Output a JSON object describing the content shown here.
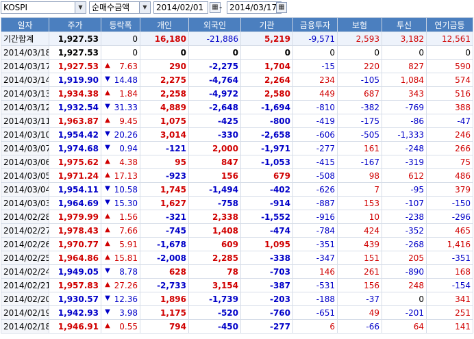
{
  "toolbar": {
    "market": "KOSPI",
    "metric": "순매수금액",
    "start_date": "2014/02/01",
    "separator": "-",
    "end_date": "2014/03/17"
  },
  "columns": [
    "일자",
    "주가",
    "등락폭",
    "개인",
    "외국인",
    "기관",
    "금융투자",
    "보험",
    "투신",
    "연기금등"
  ],
  "summary": {
    "label": "기간합계",
    "price": "1,927.53",
    "change": "0",
    "indiv": "16,180",
    "foreign": "-21,886",
    "inst": "5,219",
    "fin": "-9,571",
    "ins": "2,593",
    "trust": "3,182",
    "pension": "12,561"
  },
  "rows": [
    {
      "date": "2014/03/18",
      "price": "1,927.53",
      "dir": "none",
      "change": "0",
      "indiv": "0",
      "foreign": "0",
      "inst": "0",
      "fin": "0",
      "ins": "0",
      "trust": "0",
      "pension": "0"
    },
    {
      "date": "2014/03/17",
      "price": "1,927.53",
      "dir": "up",
      "change": "7.63",
      "indiv": "290",
      "foreign": "-2,275",
      "inst": "1,704",
      "fin": "-15",
      "ins": "220",
      "trust": "827",
      "pension": "590"
    },
    {
      "date": "2014/03/14",
      "price": "1,919.90",
      "dir": "down",
      "change": "14.48",
      "indiv": "2,275",
      "foreign": "-4,764",
      "inst": "2,264",
      "fin": "234",
      "ins": "-105",
      "trust": "1,084",
      "pension": "574"
    },
    {
      "date": "2014/03/13",
      "price": "1,934.38",
      "dir": "up",
      "change": "1.84",
      "indiv": "2,258",
      "foreign": "-4,972",
      "inst": "2,580",
      "fin": "449",
      "ins": "687",
      "trust": "343",
      "pension": "516"
    },
    {
      "date": "2014/03/12",
      "price": "1,932.54",
      "dir": "down",
      "change": "31.33",
      "indiv": "4,889",
      "foreign": "-2,648",
      "inst": "-1,694",
      "fin": "-810",
      "ins": "-382",
      "trust": "-769",
      "pension": "388"
    },
    {
      "date": "2014/03/11",
      "price": "1,963.87",
      "dir": "up",
      "change": "9.45",
      "indiv": "1,075",
      "foreign": "-425",
      "inst": "-800",
      "fin": "-419",
      "ins": "-175",
      "trust": "-86",
      "pension": "-47"
    },
    {
      "date": "2014/03/10",
      "price": "1,954.42",
      "dir": "down",
      "change": "20.26",
      "indiv": "3,014",
      "foreign": "-330",
      "inst": "-2,658",
      "fin": "-606",
      "ins": "-505",
      "trust": "-1,333",
      "pension": "246"
    },
    {
      "date": "2014/03/07",
      "price": "1,974.68",
      "dir": "down",
      "change": "0.94",
      "indiv": "-121",
      "foreign": "2,000",
      "inst": "-1,971",
      "fin": "-277",
      "ins": "161",
      "trust": "-248",
      "pension": "266"
    },
    {
      "date": "2014/03/06",
      "price": "1,975.62",
      "dir": "up",
      "change": "4.38",
      "indiv": "95",
      "foreign": "847",
      "inst": "-1,053",
      "fin": "-415",
      "ins": "-167",
      "trust": "-319",
      "pension": "75"
    },
    {
      "date": "2014/03/05",
      "price": "1,971.24",
      "dir": "up",
      "change": "17.13",
      "indiv": "-923",
      "foreign": "156",
      "inst": "679",
      "fin": "-508",
      "ins": "98",
      "trust": "612",
      "pension": "486"
    },
    {
      "date": "2014/03/04",
      "price": "1,954.11",
      "dir": "down",
      "change": "10.58",
      "indiv": "1,745",
      "foreign": "-1,494",
      "inst": "-402",
      "fin": "-626",
      "ins": "7",
      "trust": "-95",
      "pension": "379"
    },
    {
      "date": "2014/03/03",
      "price": "1,964.69",
      "dir": "down",
      "change": "15.30",
      "indiv": "1,627",
      "foreign": "-758",
      "inst": "-914",
      "fin": "-887",
      "ins": "153",
      "trust": "-107",
      "pension": "-150"
    },
    {
      "date": "2014/02/28",
      "price": "1,979.99",
      "dir": "up",
      "change": "1.56",
      "indiv": "-321",
      "foreign": "2,338",
      "inst": "-1,552",
      "fin": "-916",
      "ins": "10",
      "trust": "-238",
      "pension": "-296"
    },
    {
      "date": "2014/02/27",
      "price": "1,978.43",
      "dir": "up",
      "change": "7.66",
      "indiv": "-745",
      "foreign": "1,408",
      "inst": "-474",
      "fin": "-784",
      "ins": "424",
      "trust": "-352",
      "pension": "465"
    },
    {
      "date": "2014/02/26",
      "price": "1,970.77",
      "dir": "up",
      "change": "5.91",
      "indiv": "-1,678",
      "foreign": "609",
      "inst": "1,095",
      "fin": "-351",
      "ins": "439",
      "trust": "-268",
      "pension": "1,416"
    },
    {
      "date": "2014/02/25",
      "price": "1,964.86",
      "dir": "up",
      "change": "15.81",
      "indiv": "-2,008",
      "foreign": "2,285",
      "inst": "-338",
      "fin": "-347",
      "ins": "151",
      "trust": "205",
      "pension": "-351"
    },
    {
      "date": "2014/02/24",
      "price": "1,949.05",
      "dir": "down",
      "change": "8.78",
      "indiv": "628",
      "foreign": "78",
      "inst": "-703",
      "fin": "146",
      "ins": "261",
      "trust": "-890",
      "pension": "168"
    },
    {
      "date": "2014/02/21",
      "price": "1,957.83",
      "dir": "up",
      "change": "27.26",
      "indiv": "-2,733",
      "foreign": "3,154",
      "inst": "-387",
      "fin": "-531",
      "ins": "156",
      "trust": "248",
      "pension": "-154"
    },
    {
      "date": "2014/02/20",
      "price": "1,930.57",
      "dir": "down",
      "change": "12.36",
      "indiv": "1,896",
      "foreign": "-1,739",
      "inst": "-203",
      "fin": "-188",
      "ins": "-37",
      "trust": "0",
      "pension": "341"
    },
    {
      "date": "2014/02/19",
      "price": "1,942.93",
      "dir": "down",
      "change": "3.98",
      "indiv": "1,175",
      "foreign": "-520",
      "inst": "-760",
      "fin": "-651",
      "ins": "49",
      "trust": "-201",
      "pension": "251"
    },
    {
      "date": "2014/02/18",
      "price": "1,946.91",
      "dir": "up",
      "change": "0.55",
      "indiv": "794",
      "foreign": "-450",
      "inst": "-277",
      "fin": "6",
      "ins": "-66",
      "trust": "64",
      "pension": "141"
    }
  ],
  "colors": {
    "up": "#d00000",
    "down": "#0000c8",
    "header": "#4b7fbf"
  }
}
